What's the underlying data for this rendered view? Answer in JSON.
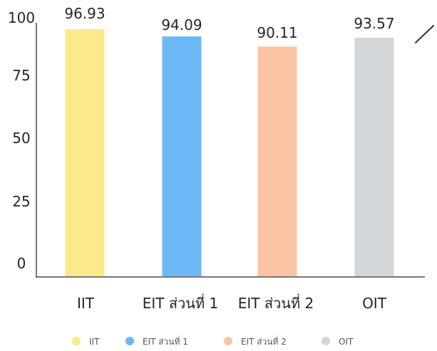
{
  "chart_data": {
    "type": "bar",
    "title": "",
    "xlabel": "",
    "ylabel": "",
    "ylim": [
      0,
      100
    ],
    "yticks": [
      0,
      25,
      50,
      75,
      100
    ],
    "grid": false,
    "legend_position": "bottom",
    "categories": [
      "IIT",
      "EIT ส่วนที่ 1",
      "EIT ส่วนที่ 2",
      "OIT"
    ],
    "values": [
      96.93,
      94.09,
      90.11,
      93.57
    ],
    "value_labels": [
      "96.93",
      "94.09",
      "90.11",
      "93.57"
    ],
    "colors": [
      "#FBE98A",
      "#6DB9F7",
      "#FDC4A4",
      "#D3D6D9"
    ],
    "legend": [
      "IIT",
      "EIT ส่วนที่ 1",
      "EIT ส่วนที่ 2",
      "OIT"
    ]
  },
  "style": {
    "axis_color": "#4a4a4a",
    "text_color": "#262626",
    "legend_text_color": "#555555"
  }
}
